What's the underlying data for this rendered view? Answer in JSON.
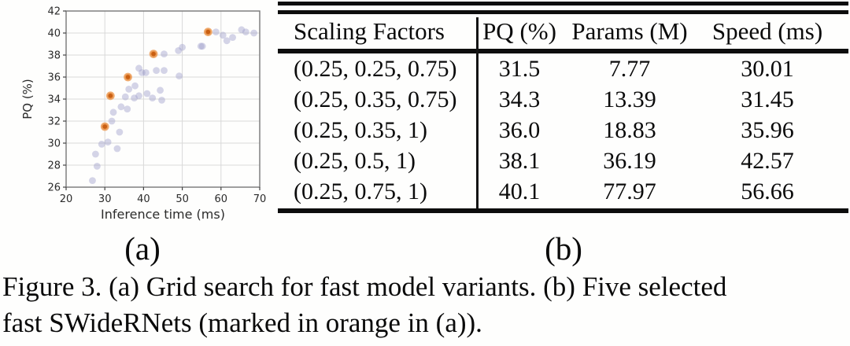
{
  "figure": {
    "panel_a_label": "(a)",
    "panel_b_label": "(b)",
    "caption_line1": "Figure 3. (a) Grid search for fast model variants. (b) Five selected",
    "caption_line2": "fast SWideRNets (marked in orange in (a))."
  },
  "chart_data": {
    "type": "scatter",
    "title": "",
    "xlabel": "Inference time (ms)",
    "ylabel": "PQ (%)",
    "xlim": [
      20,
      70
    ],
    "ylim": [
      26,
      42
    ],
    "x_ticks": [
      20,
      30,
      40,
      50,
      60,
      70
    ],
    "y_ticks": [
      26,
      28,
      30,
      32,
      34,
      36,
      38,
      40,
      42
    ],
    "grid": true,
    "legend": "none",
    "colors": {
      "candidate_fill": "#9a9ac8",
      "selected_fill": "#c95f12",
      "selected_halo": "#eda05c",
      "gridline": "#d9d9d9",
      "spine": "#777777"
    },
    "series": [
      {
        "name": "grid-search-candidates",
        "points": [
          [
            26.8,
            26.6
          ],
          [
            28.0,
            27.9
          ],
          [
            27.6,
            29.0
          ],
          [
            29.2,
            29.9
          ],
          [
            30.8,
            30.1
          ],
          [
            33.2,
            29.5
          ],
          [
            31.8,
            32.0
          ],
          [
            32.2,
            32.8
          ],
          [
            33.8,
            31.0
          ],
          [
            34.2,
            33.3
          ],
          [
            35.8,
            33.1
          ],
          [
            35.3,
            34.2
          ],
          [
            36.2,
            34.9
          ],
          [
            37.6,
            34.1
          ],
          [
            38.8,
            34.3
          ],
          [
            40.9,
            34.5
          ],
          [
            42.3,
            34.1
          ],
          [
            44.3,
            34.8
          ],
          [
            44.7,
            33.9
          ],
          [
            37.8,
            35.2
          ],
          [
            38.8,
            36.8
          ],
          [
            39.6,
            36.4
          ],
          [
            40.6,
            36.4
          ],
          [
            43.3,
            36.6
          ],
          [
            45.3,
            36.6
          ],
          [
            49.2,
            36.1
          ],
          [
            45.3,
            38.1
          ],
          [
            49.0,
            38.4
          ],
          [
            50.0,
            38.7
          ],
          [
            54.8,
            38.8
          ],
          [
            55.2,
            38.8
          ],
          [
            58.7,
            40.1
          ],
          [
            60.5,
            39.8
          ],
          [
            61.5,
            39.3
          ],
          [
            63.0,
            39.6
          ],
          [
            65.3,
            40.3
          ],
          [
            66.4,
            40.1
          ],
          [
            68.5,
            40.0
          ]
        ]
      },
      {
        "name": "selected-swidernets",
        "points": [
          [
            30.01,
            31.5
          ],
          [
            31.45,
            34.3
          ],
          [
            35.96,
            36.0
          ],
          [
            42.57,
            38.1
          ],
          [
            56.66,
            40.1
          ]
        ]
      }
    ]
  },
  "table": {
    "columns": [
      "Scaling Factors",
      "PQ (%)",
      "Params (M)",
      "Speed (ms)"
    ],
    "rows": [
      [
        "(0.25, 0.25, 0.75)",
        "31.5",
        "7.77",
        "30.01"
      ],
      [
        "(0.25, 0.35, 0.75)",
        "34.3",
        "13.39",
        "31.45"
      ],
      [
        "(0.25, 0.35, 1)",
        "36.0",
        "18.83",
        "35.96"
      ],
      [
        "(0.25, 0.5, 1)",
        "38.1",
        "36.19",
        "42.57"
      ],
      [
        "(0.25, 0.75, 1)",
        "40.1",
        "77.97",
        "56.66"
      ]
    ]
  }
}
